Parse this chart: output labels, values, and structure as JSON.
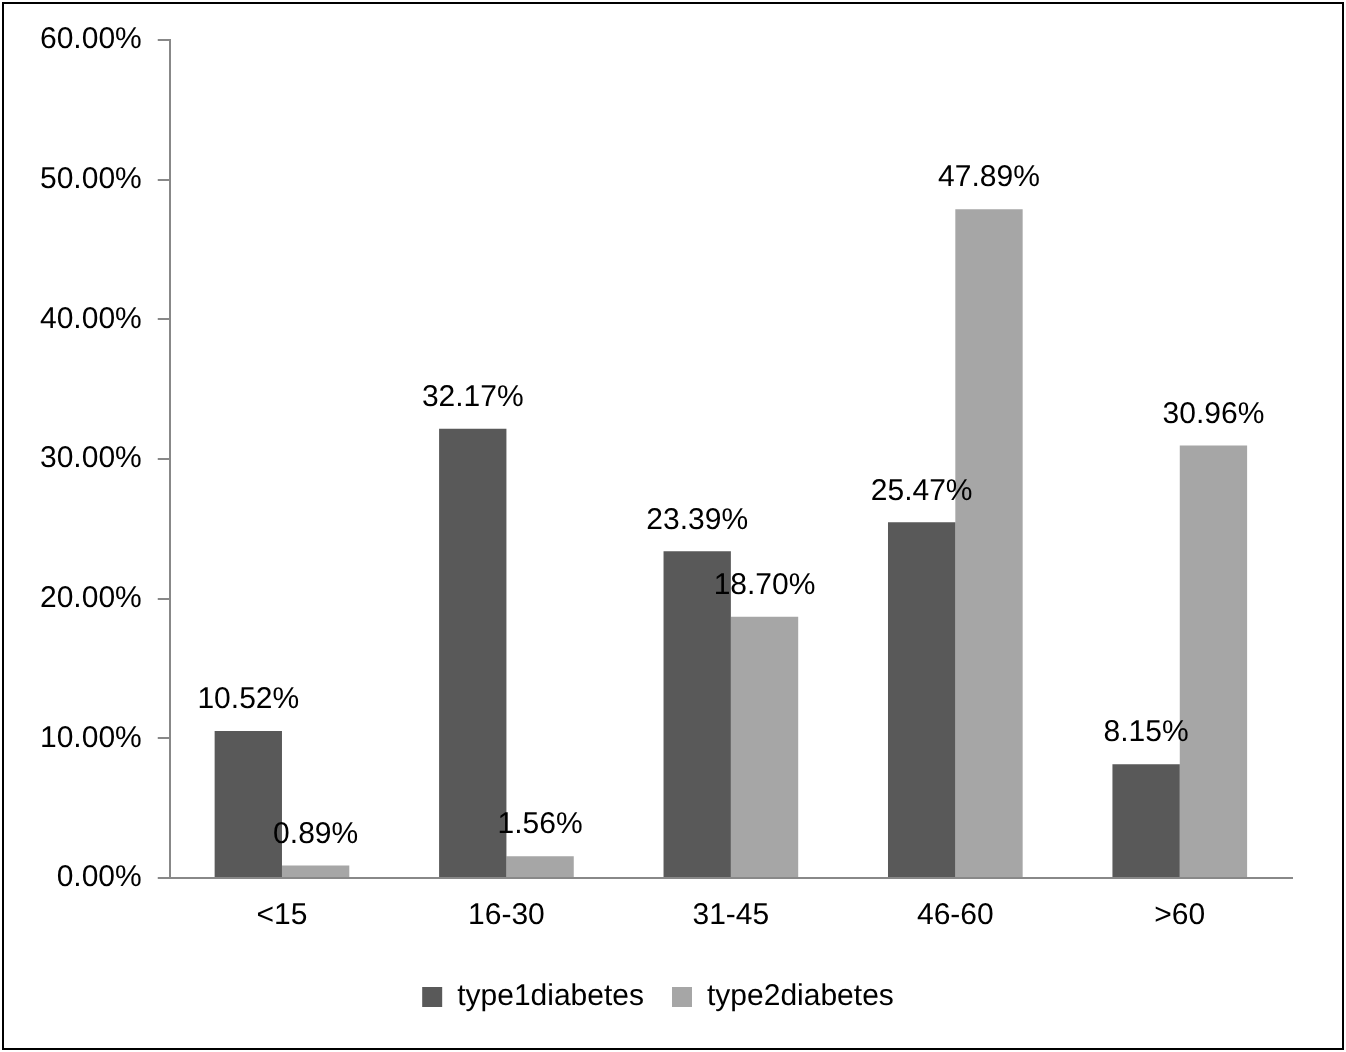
{
  "chart_data": {
    "type": "bar",
    "categories": [
      "<15",
      "16-30",
      "31-45",
      "46-60",
      ">60"
    ],
    "series": [
      {
        "name": "type1diabetes",
        "color": "#595959",
        "values": [
          10.52,
          32.17,
          23.39,
          25.47,
          8.15
        ],
        "value_labels": [
          "10.52%",
          "32.17%",
          "23.39%",
          "25.47%",
          "8.15%"
        ]
      },
      {
        "name": "type2diabetes",
        "color": "#a6a6a6",
        "values": [
          0.89,
          1.56,
          18.7,
          47.89,
          30.96
        ],
        "value_labels": [
          "0.89%",
          "1.56%",
          "18.70%",
          "47.89%",
          "30.96%"
        ]
      }
    ],
    "ylim": [
      0,
      60
    ],
    "yticks": [
      {
        "value": 0,
        "label": "0.00%"
      },
      {
        "value": 10,
        "label": "10.00%"
      },
      {
        "value": 20,
        "label": "20.00%"
      },
      {
        "value": 30,
        "label": "30.00%"
      },
      {
        "value": 40,
        "label": "40.00%"
      },
      {
        "value": 50,
        "label": "50.00%"
      },
      {
        "value": 60,
        "label": "60.00%"
      }
    ],
    "grid": false,
    "legend": "bottom"
  }
}
